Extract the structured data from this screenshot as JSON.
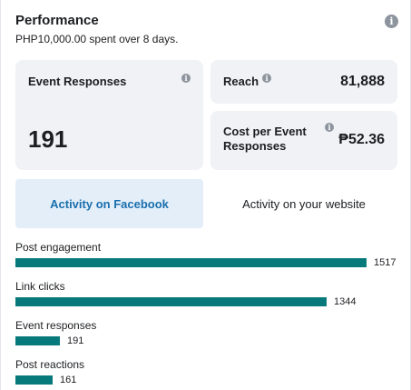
{
  "header": {
    "title": "Performance",
    "subtitle": "PHP10,000.00 spent over 8 days."
  },
  "cards": {
    "event_responses": {
      "label": "Event Responses",
      "value": "191"
    },
    "reach": {
      "label": "Reach",
      "value": "81,888"
    },
    "cost": {
      "label": "Cost per Event Responses",
      "value": "₱52.36"
    }
  },
  "tabs": [
    {
      "label": "Activity on Facebook",
      "active": true
    },
    {
      "label": "Activity on your website",
      "active": false
    }
  ],
  "metrics": [
    {
      "label": "Post engagement",
      "value": 1517,
      "value_text": "1517"
    },
    {
      "label": "Link clicks",
      "value": 1344,
      "value_text": "1344"
    },
    {
      "label": "Event responses",
      "value": 191,
      "value_text": "191"
    },
    {
      "label": "Post reactions",
      "value": 161,
      "value_text": "161"
    }
  ],
  "colors": {
    "bar": "#07797b",
    "card_bg": "#f0f2f5",
    "active_tab_bg": "#e3eef9",
    "active_tab_text": "#1a6fad",
    "info_icon": "#8d949e"
  },
  "icons": {
    "header_info": "info-icon",
    "card_info": "info-icon"
  }
}
